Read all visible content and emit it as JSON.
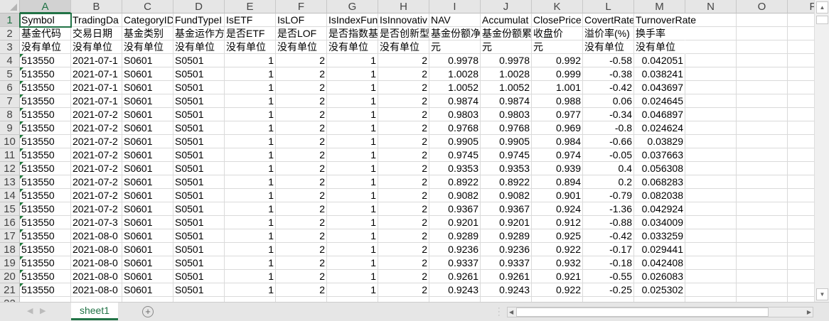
{
  "columns": [
    "A",
    "B",
    "C",
    "D",
    "E",
    "F",
    "G",
    "H",
    "I",
    "J",
    "K",
    "L",
    "M",
    "N",
    "O",
    "P"
  ],
  "header_rows": [
    [
      "Symbol",
      "TradingDa",
      "CategoryID",
      "FundTypeI",
      "IsETF",
      "IsLOF",
      "IsIndexFun",
      "IsInnovativ",
      "NAV",
      "Accumulat",
      "ClosePrice",
      "CovertRate",
      "TurnoverRate"
    ],
    [
      "基金代码",
      "交易日期",
      "基金类别",
      "基金运作方",
      "是否ETF",
      "是否LOF",
      "是否指数基",
      "是否创新型",
      "基金份额净",
      "基金份额累",
      "收盘价",
      "溢价率(%)",
      "换手率"
    ],
    [
      "没有单位",
      "没有单位",
      "没有单位",
      "没有单位",
      "没有单位",
      "没有单位",
      "没有单位",
      "没有单位",
      "元",
      "元",
      "元",
      "没有单位",
      "没有单位"
    ]
  ],
  "data_rows": [
    [
      "513550",
      "2021-07-1",
      "S0601",
      "S0501",
      "1",
      "2",
      "1",
      "2",
      "0.9978",
      "0.9978",
      "0.992",
      "-0.58",
      "0.042051"
    ],
    [
      "513550",
      "2021-07-1",
      "S0601",
      "S0501",
      "1",
      "2",
      "1",
      "2",
      "1.0028",
      "1.0028",
      "0.999",
      "-0.38",
      "0.038241"
    ],
    [
      "513550",
      "2021-07-1",
      "S0601",
      "S0501",
      "1",
      "2",
      "1",
      "2",
      "1.0052",
      "1.0052",
      "1.001",
      "-0.42",
      "0.043697"
    ],
    [
      "513550",
      "2021-07-1",
      "S0601",
      "S0501",
      "1",
      "2",
      "1",
      "2",
      "0.9874",
      "0.9874",
      "0.988",
      "0.06",
      "0.024645"
    ],
    [
      "513550",
      "2021-07-2",
      "S0601",
      "S0501",
      "1",
      "2",
      "1",
      "2",
      "0.9803",
      "0.9803",
      "0.977",
      "-0.34",
      "0.046897"
    ],
    [
      "513550",
      "2021-07-2",
      "S0601",
      "S0501",
      "1",
      "2",
      "1",
      "2",
      "0.9768",
      "0.9768",
      "0.969",
      "-0.8",
      "0.024624"
    ],
    [
      "513550",
      "2021-07-2",
      "S0601",
      "S0501",
      "1",
      "2",
      "1",
      "2",
      "0.9905",
      "0.9905",
      "0.984",
      "-0.66",
      "0.03829"
    ],
    [
      "513550",
      "2021-07-2",
      "S0601",
      "S0501",
      "1",
      "2",
      "1",
      "2",
      "0.9745",
      "0.9745",
      "0.974",
      "-0.05",
      "0.037663"
    ],
    [
      "513550",
      "2021-07-2",
      "S0601",
      "S0501",
      "1",
      "2",
      "1",
      "2",
      "0.9353",
      "0.9353",
      "0.939",
      "0.4",
      "0.056308"
    ],
    [
      "513550",
      "2021-07-2",
      "S0601",
      "S0501",
      "1",
      "2",
      "1",
      "2",
      "0.8922",
      "0.8922",
      "0.894",
      "0.2",
      "0.068283"
    ],
    [
      "513550",
      "2021-07-2",
      "S0601",
      "S0501",
      "1",
      "2",
      "1",
      "2",
      "0.9082",
      "0.9082",
      "0.901",
      "-0.79",
      "0.082038"
    ],
    [
      "513550",
      "2021-07-2",
      "S0601",
      "S0501",
      "1",
      "2",
      "1",
      "2",
      "0.9367",
      "0.9367",
      "0.924",
      "-1.36",
      "0.042924"
    ],
    [
      "513550",
      "2021-07-3",
      "S0601",
      "S0501",
      "1",
      "2",
      "1",
      "2",
      "0.9201",
      "0.9201",
      "0.912",
      "-0.88",
      "0.034009"
    ],
    [
      "513550",
      "2021-08-0",
      "S0601",
      "S0501",
      "1",
      "2",
      "1",
      "2",
      "0.9289",
      "0.9289",
      "0.925",
      "-0.42",
      "0.033259"
    ],
    [
      "513550",
      "2021-08-0",
      "S0601",
      "S0501",
      "1",
      "2",
      "1",
      "2",
      "0.9236",
      "0.9236",
      "0.922",
      "-0.17",
      "0.029441"
    ],
    [
      "513550",
      "2021-08-0",
      "S0601",
      "S0501",
      "1",
      "2",
      "1",
      "2",
      "0.9337",
      "0.9337",
      "0.932",
      "-0.18",
      "0.042408"
    ],
    [
      "513550",
      "2021-08-0",
      "S0601",
      "S0501",
      "1",
      "2",
      "1",
      "2",
      "0.9261",
      "0.9261",
      "0.921",
      "-0.55",
      "0.026083"
    ],
    [
      "513550",
      "2021-08-0",
      "S0601",
      "S0501",
      "1",
      "2",
      "1",
      "2",
      "0.9243",
      "0.9243",
      "0.922",
      "-0.25",
      "0.025302"
    ]
  ],
  "sheet_tab": "sheet1",
  "add_sheet_icon": "plus-circle-icon",
  "accent_color": "#217346"
}
